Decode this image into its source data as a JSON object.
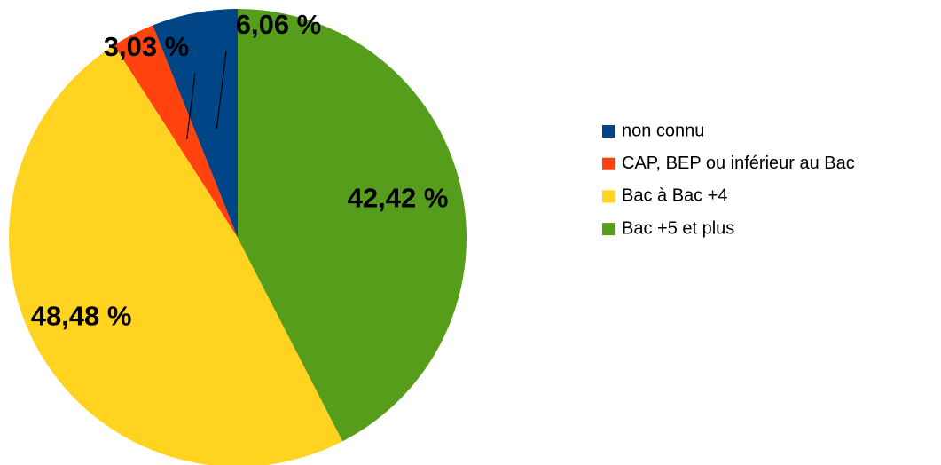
{
  "chart_data": {
    "type": "pie",
    "categories": [
      "non connu",
      "CAP, BEP ou inférieur au Bac",
      "Bac à Bac +4",
      "Bac +5 et plus"
    ],
    "values": [
      6.06,
      3.03,
      48.48,
      42.42
    ],
    "value_labels": [
      "6,06 %",
      "3,03 %",
      "48,48 %",
      "42,42 %"
    ],
    "colors": [
      "#004586",
      "#ff420e",
      "#ffd320",
      "#579d1c"
    ],
    "legend": "right"
  }
}
